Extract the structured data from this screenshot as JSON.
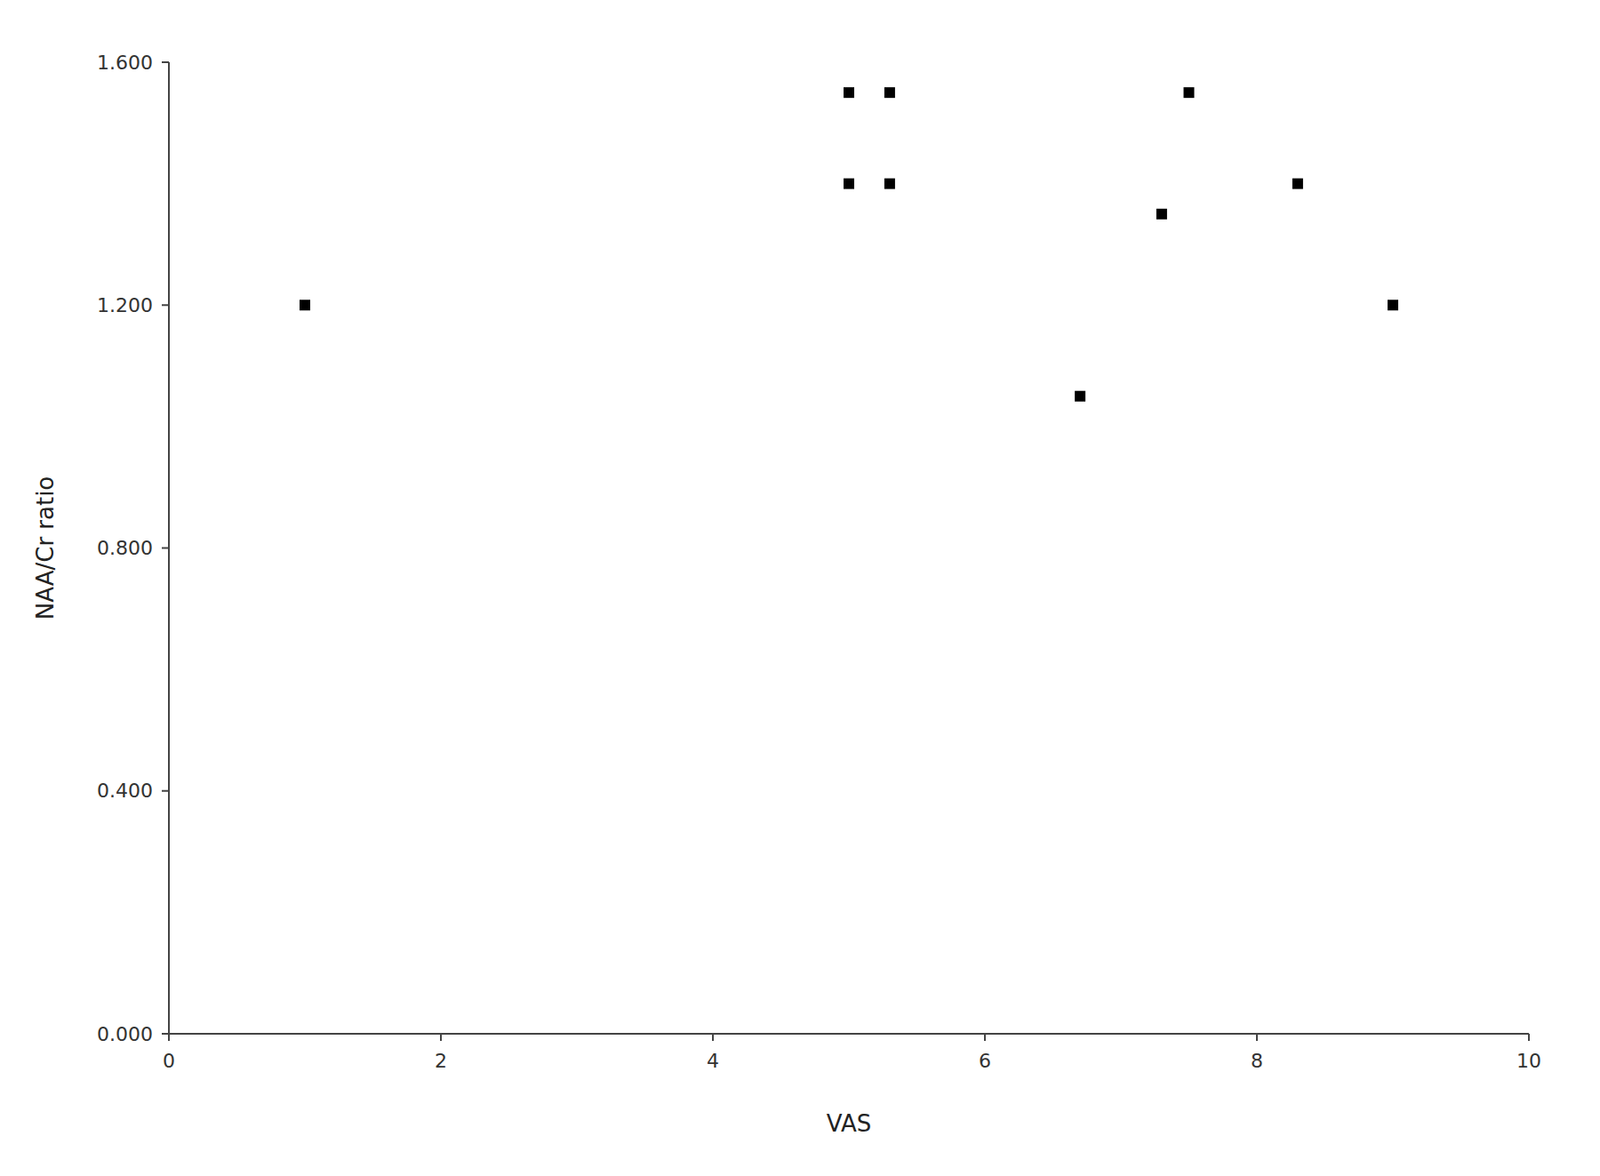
{
  "chart_data": {
    "type": "scatter",
    "x": [
      1.0,
      5.0,
      5.0,
      5.3,
      5.3,
      6.7,
      7.3,
      7.5,
      8.3,
      9.0
    ],
    "y": [
      1.2,
      1.55,
      1.4,
      1.55,
      1.4,
      1.05,
      1.35,
      1.55,
      1.4,
      1.2
    ],
    "xlabel": "VAS",
    "ylabel": "NAA/Cr ratio",
    "xlim": [
      0,
      10
    ],
    "ylim": [
      0.0,
      1.6
    ],
    "xticks": [
      0,
      2,
      4,
      6,
      8,
      10
    ],
    "yticks": [
      {
        "value": 0.0,
        "label": "0.000"
      },
      {
        "value": 0.4,
        "label": "0.400"
      },
      {
        "value": 0.8,
        "label": "0.800"
      },
      {
        "value": 1.2,
        "label": "1.200"
      },
      {
        "value": 1.6,
        "label": "1.600"
      }
    ],
    "marker": "square",
    "color": "#000000",
    "grid": false
  }
}
